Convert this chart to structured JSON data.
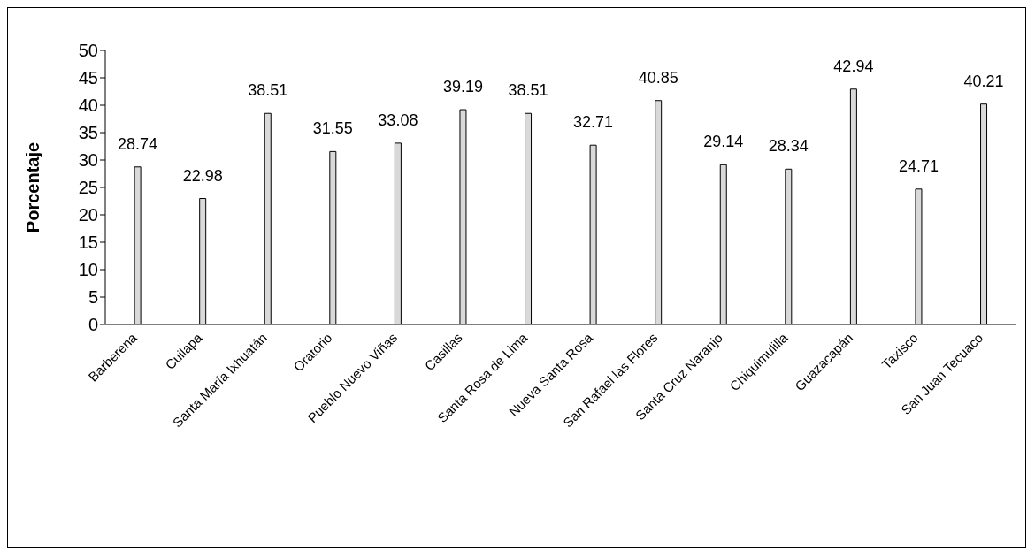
{
  "chart_data": {
    "type": "bar",
    "ylabel": "Porcentaje",
    "categories": [
      "Barberena",
      "Cuilapa",
      "Santa María Ixhuatán",
      "Oratorio",
      "Pueblo Nuevo Viñas",
      "Casillas",
      "Santa Rosa de Lima",
      "Nueva Santa Rosa",
      "San Rafael las Flores",
      "Santa Cruz Naranjo",
      "Chiquimulilla",
      "Guazacapán",
      "Taxisco",
      "San Juan Tecuaco"
    ],
    "values": [
      28.74,
      22.98,
      38.51,
      31.55,
      33.08,
      39.19,
      38.51,
      32.71,
      40.85,
      29.14,
      28.34,
      42.94,
      24.71,
      40.21
    ],
    "color": "#d9d9d9",
    "ylim": [
      0,
      50
    ],
    "yticks": [
      0,
      5,
      10,
      15,
      20,
      25,
      30,
      35,
      40,
      45,
      50
    ],
    "data_labels": true,
    "legend": false,
    "grid": false
  }
}
